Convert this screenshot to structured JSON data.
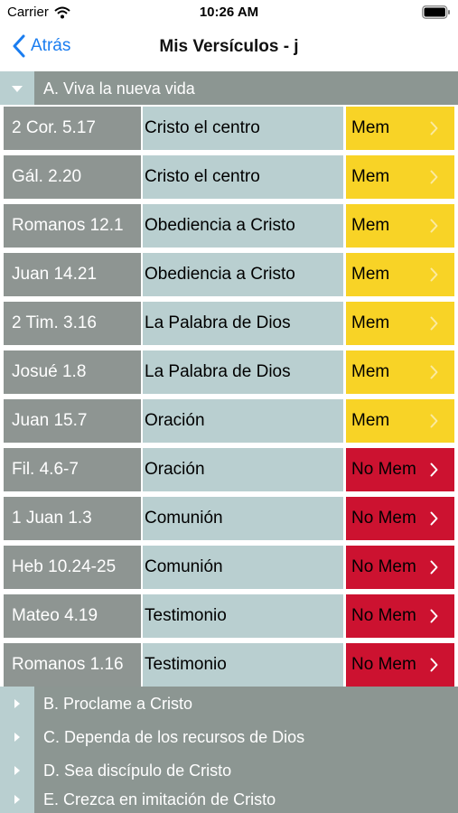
{
  "status_bar": {
    "carrier": "Carrier",
    "time": "10:26 AM"
  },
  "nav": {
    "back_label": "Atrás",
    "title": "Mis Versículos - j"
  },
  "sections": [
    {
      "label": "A. Viva la nueva vida",
      "expanded": true
    },
    {
      "label": "B. Proclame a Cristo",
      "expanded": false
    },
    {
      "label": "C. Dependa de los recursos de Dios",
      "expanded": false
    },
    {
      "label": "D. Sea discípulo de Cristo",
      "expanded": false
    },
    {
      "label": "E. Crezca en imitación de Cristo",
      "expanded": false
    }
  ],
  "verses": [
    {
      "ref": "2 Cor. 5.17",
      "topic": "Cristo el centro",
      "status": "Mem"
    },
    {
      "ref": "Gál. 2.20",
      "topic": "Cristo el centro",
      "status": "Mem"
    },
    {
      "ref": "Romanos 12.1",
      "topic": "Obediencia a Cristo",
      "status": "Mem"
    },
    {
      "ref": "Juan 14.21",
      "topic": "Obediencia a Cristo",
      "status": "Mem"
    },
    {
      "ref": "2 Tim. 3.16",
      "topic": "La Palabra de Dios",
      "status": "Mem"
    },
    {
      "ref": "Josué 1.8",
      "topic": "La Palabra de Dios",
      "status": "Mem"
    },
    {
      "ref": "Juan 15.7",
      "topic": "Oración",
      "status": "Mem"
    },
    {
      "ref": "Fil. 4.6-7",
      "topic": "Oración",
      "status": "No Mem"
    },
    {
      "ref": "1 Juan 1.3",
      "topic": "Comunión",
      "status": "No Mem"
    },
    {
      "ref": "Heb 10.24-25",
      "topic": "Comunión",
      "status": "No Mem"
    },
    {
      "ref": "Mateo 4.19",
      "topic": "Testimonio",
      "status": "No Mem"
    },
    {
      "ref": "Romanos 1.16",
      "topic": "Testimonio",
      "status": "No Mem"
    }
  ],
  "colors": {
    "mem": "#f8d326",
    "no_mem": "#cc1230",
    "ref_bg": "#8e9592",
    "topic_bg": "#b9cfd0",
    "accent": "#1a7df0"
  }
}
